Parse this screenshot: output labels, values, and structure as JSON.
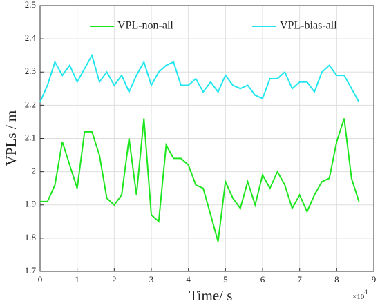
{
  "chart_data": {
    "type": "line",
    "xlabel": "Time/ s",
    "ylabel": "VPLs / m",
    "x_multiplier": {
      "base": "×10",
      "exponent": "4"
    },
    "x": [
      0,
      2000,
      4000,
      6000,
      8000,
      10000,
      12000,
      14000,
      16000,
      18000,
      20000,
      22000,
      24000,
      26000,
      28000,
      30000,
      32000,
      34000,
      36000,
      38000,
      40000,
      42000,
      44000,
      46000,
      48000,
      50000,
      52000,
      54000,
      56000,
      58000,
      60000,
      62000,
      64000,
      66000,
      68000,
      70000,
      72000,
      74000,
      76000,
      78000,
      80000,
      82000,
      84000,
      86000
    ],
    "series": [
      {
        "name": "VPL-non-all",
        "color": "#1ee61e",
        "values": [
          1.91,
          1.91,
          1.96,
          2.09,
          2.02,
          1.95,
          2.12,
          2.12,
          2.05,
          1.92,
          1.9,
          1.93,
          2.1,
          1.93,
          2.16,
          1.87,
          1.85,
          2.08,
          2.04,
          2.04,
          2.02,
          1.96,
          1.95,
          1.87,
          1.79,
          1.97,
          1.92,
          1.89,
          1.97,
          1.9,
          1.99,
          1.95,
          2.0,
          1.96,
          1.89,
          1.93,
          1.88,
          1.93,
          1.97,
          1.98,
          2.09,
          2.16,
          1.98,
          1.91
        ]
      },
      {
        "name": "VPL-bias-all",
        "color": "#22e6ee",
        "values": [
          2.21,
          2.26,
          2.33,
          2.29,
          2.32,
          2.27,
          2.31,
          2.35,
          2.27,
          2.3,
          2.26,
          2.29,
          2.24,
          2.29,
          2.33,
          2.26,
          2.3,
          2.32,
          2.33,
          2.26,
          2.26,
          2.28,
          2.24,
          2.27,
          2.24,
          2.29,
          2.26,
          2.25,
          2.26,
          2.23,
          2.22,
          2.28,
          2.28,
          2.3,
          2.25,
          2.27,
          2.27,
          2.24,
          2.3,
          2.32,
          2.29,
          2.29,
          2.25,
          2.21
        ]
      }
    ],
    "xlim": [
      0,
      90000
    ],
    "xticks": [
      {
        "value": 0,
        "label": "0"
      },
      {
        "value": 10000,
        "label": "1"
      },
      {
        "value": 20000,
        "label": "2"
      },
      {
        "value": 30000,
        "label": "3"
      },
      {
        "value": 40000,
        "label": "4"
      },
      {
        "value": 50000,
        "label": "5"
      },
      {
        "value": 60000,
        "label": "6"
      },
      {
        "value": 70000,
        "label": "7"
      },
      {
        "value": 80000,
        "label": "8"
      },
      {
        "value": 90000,
        "label": "9"
      }
    ],
    "ylim": [
      1.7,
      2.5
    ],
    "yticks": [
      1.7,
      1.8,
      1.9,
      2,
      2.1,
      2.2,
      2.3,
      2.4,
      2.5
    ],
    "grid": true,
    "legend_loc": "upper center"
  }
}
